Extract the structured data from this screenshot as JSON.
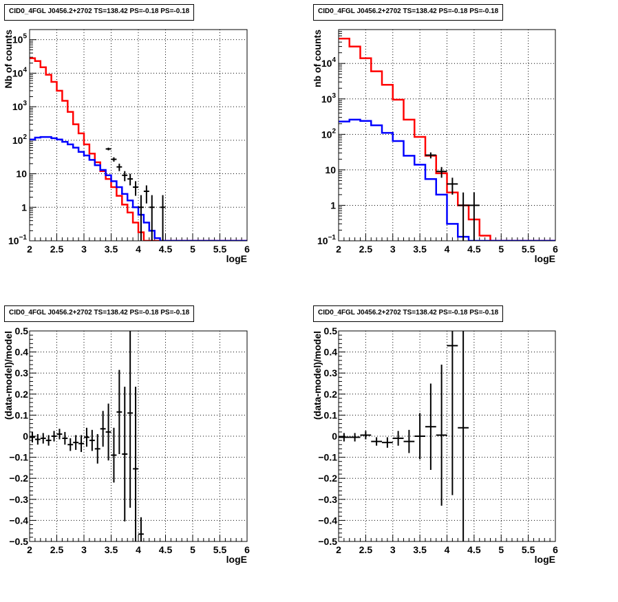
{
  "chart_data": [
    {
      "id": "p1",
      "type": "line",
      "title": "CID0_4FGL J0456.2+2702 TS=138.42 PS=-0.18 PS=-0.18",
      "xlabel": "logE",
      "ylabel": "Nb of counts",
      "xlim": [
        2,
        6
      ],
      "ylim": [
        0.1,
        200000
      ],
      "yscale": "log",
      "grid": true,
      "x_ticks": [
        "2",
        "2.5",
        "3",
        "3.5",
        "4",
        "4.5",
        "5",
        "5.5",
        "6"
      ],
      "y_ticks": [
        {
          "v": 0.1,
          "base": "10",
          "exp": "−1"
        },
        {
          "v": 1,
          "label": "1"
        },
        {
          "v": 10,
          "label": "10"
        },
        {
          "v": 100,
          "base": "10",
          "exp": "2"
        },
        {
          "v": 1000,
          "base": "10",
          "exp": "3"
        },
        {
          "v": 10000,
          "base": "10",
          "exp": "4"
        },
        {
          "v": 100000,
          "base": "10",
          "exp": "5"
        }
      ],
      "bin_edges": [
        2.0,
        2.1,
        2.2,
        2.3,
        2.4,
        2.5,
        2.6,
        2.7,
        2.8,
        2.9,
        3.0,
        3.1,
        3.2,
        3.3,
        3.4,
        3.5,
        3.6,
        3.7,
        3.8,
        3.9,
        4.0,
        4.1,
        4.2,
        4.3,
        4.4,
        4.5,
        4.6,
        4.7,
        4.8,
        4.9,
        5.0,
        5.1,
        5.2,
        5.3,
        5.4,
        5.5,
        5.6,
        5.7,
        5.8,
        5.9,
        6.0
      ],
      "series": [
        {
          "color": "#ff0000",
          "kind": "hist",
          "values": [
            28000,
            23000,
            15000,
            9000,
            5500,
            3000,
            1500,
            700,
            300,
            160,
            75,
            40,
            22,
            12,
            7,
            4,
            2.2,
            1.2,
            0.7,
            0.35,
            0.18,
            0.1,
            0.1,
            0.1,
            0.1,
            0.1,
            0.1,
            0.1,
            0.1,
            0.1,
            0.1,
            0.1,
            0.1,
            0.1,
            0.1,
            0.1,
            0.1,
            0.1,
            0.1,
            0.1
          ]
        },
        {
          "color": "#0000ff",
          "kind": "hist",
          "values": [
            105,
            120,
            125,
            125,
            115,
            105,
            90,
            75,
            60,
            45,
            35,
            26,
            18,
            13,
            9,
            6,
            4,
            2.5,
            1.6,
            1,
            0.6,
            0.35,
            0.2,
            0.12,
            0.1,
            0.1,
            0.1,
            0.1,
            0.1,
            0.1,
            0.1,
            0.1,
            0.1,
            0.1,
            0.1,
            0.1,
            0.1,
            0.1,
            0.1,
            0.1
          ]
        },
        {
          "color": "#000000",
          "kind": "points",
          "points": [
            {
              "x": 3.45,
              "y": 55,
              "xerr": 0.05,
              "ylo": 50,
              "yhi": 60
            },
            {
              "x": 3.55,
              "y": 27,
              "xerr": 0.05,
              "ylo": 23,
              "yhi": 31
            },
            {
              "x": 3.65,
              "y": 16,
              "xerr": 0.05,
              "ylo": 12,
              "yhi": 20
            },
            {
              "x": 3.75,
              "y": 9,
              "xerr": 0.05,
              "ylo": 6,
              "yhi": 12
            },
            {
              "x": 3.85,
              "y": 7,
              "xerr": 0.05,
              "ylo": 4.5,
              "yhi": 10
            },
            {
              "x": 3.95,
              "y": 4,
              "xerr": 0.05,
              "ylo": 2.2,
              "yhi": 6
            },
            {
              "x": 4.05,
              "y": 1,
              "xerr": 0.05,
              "ylo": 0.1,
              "yhi": 2.3
            },
            {
              "x": 4.15,
              "y": 3,
              "xerr": 0.05,
              "ylo": 1.3,
              "yhi": 4.5
            },
            {
              "x": 4.25,
              "y": 1,
              "xerr": 0.05,
              "ylo": 0.1,
              "yhi": 2.3
            },
            {
              "x": 4.45,
              "y": 1,
              "xerr": 0.05,
              "ylo": 0.1,
              "yhi": 2.3
            }
          ]
        }
      ]
    },
    {
      "id": "p2",
      "type": "line",
      "title": "CID0_4FGL J0456.2+2702 TS=138.42 PS=-0.18 PS=-0.18",
      "xlabel": "logE",
      "ylabel": "nb of counts",
      "xlim": [
        2,
        6
      ],
      "ylim": [
        0.1,
        90000
      ],
      "yscale": "log",
      "grid": true,
      "x_ticks": [
        "2",
        "2.5",
        "3",
        "3.5",
        "4",
        "4.5",
        "5",
        "5.5",
        "6"
      ],
      "y_ticks": [
        {
          "v": 0.1,
          "base": "10",
          "exp": "−1"
        },
        {
          "v": 1,
          "label": "1"
        },
        {
          "v": 10,
          "label": "10"
        },
        {
          "v": 100,
          "base": "10",
          "exp": "2"
        },
        {
          "v": 1000,
          "base": "10",
          "exp": "3"
        },
        {
          "v": 10000,
          "base": "10",
          "exp": "4"
        }
      ],
      "bin_edges": [
        2.0,
        2.2,
        2.4,
        2.6,
        2.8,
        3.0,
        3.2,
        3.4,
        3.6,
        3.8,
        4.0,
        4.2,
        4.4,
        4.6,
        4.8,
        5.0,
        5.2,
        5.4,
        5.6,
        5.8,
        6.0
      ],
      "series": [
        {
          "color": "#ff0000",
          "kind": "hist",
          "values": [
            50000,
            30000,
            14000,
            6000,
            2500,
            950,
            260,
            85,
            25,
            8,
            2.3,
            1,
            0.4,
            0.14,
            0.1,
            0.1,
            0.1,
            0.1,
            0.1,
            0.1
          ]
        },
        {
          "color": "#0000ff",
          "kind": "hist",
          "values": [
            230,
            260,
            240,
            180,
            110,
            65,
            25,
            14,
            5.5,
            2,
            0.3,
            0.13,
            0.1,
            0.1,
            0.1,
            0.1,
            0.1,
            0.1,
            0.1,
            0.1
          ]
        },
        {
          "color": "#000000",
          "kind": "points",
          "points": [
            {
              "x": 3.7,
              "y": 26,
              "xerr": 0.1,
              "ylo": 21,
              "yhi": 31
            },
            {
              "x": 3.9,
              "y": 9,
              "xerr": 0.1,
              "ylo": 6,
              "yhi": 12
            },
            {
              "x": 4.1,
              "y": 4,
              "xerr": 0.1,
              "ylo": 2,
              "yhi": 6
            },
            {
              "x": 4.3,
              "y": 1,
              "xerr": 0.1,
              "ylo": 0.1,
              "yhi": 2.3
            },
            {
              "x": 4.5,
              "y": 1,
              "xerr": 0.1,
              "ylo": 0.1,
              "yhi": 2.3
            }
          ]
        }
      ]
    },
    {
      "id": "p3",
      "type": "scatter",
      "title": "CID0_4FGL J0456.2+2702 TS=138.42 PS=-0.18 PS=-0.18",
      "xlabel": "logE",
      "ylabel": "(data-model)/model",
      "xlim": [
        2,
        6
      ],
      "ylim": [
        -0.5,
        0.5
      ],
      "yscale": "linear",
      "grid": true,
      "x_ticks": [
        "2",
        "2.5",
        "3",
        "3.5",
        "4",
        "4.5",
        "5",
        "5.5",
        "6"
      ],
      "y_ticks": [
        "−0.5",
        "−0.4",
        "−0.3",
        "−0.2",
        "−0.1",
        "0",
        "0.1",
        "0.2",
        "0.3",
        "0.4",
        "0.5"
      ],
      "series": [
        {
          "color": "#000000",
          "kind": "points",
          "points": [
            {
              "x": 2.05,
              "y": -0.005,
              "xerr": 0.05,
              "err": 0.025
            },
            {
              "x": 2.15,
              "y": -0.015,
              "xerr": 0.05,
              "err": 0.025
            },
            {
              "x": 2.25,
              "y": -0.01,
              "xerr": 0.05,
              "err": 0.025
            },
            {
              "x": 2.35,
              "y": -0.02,
              "xerr": 0.05,
              "err": 0.025
            },
            {
              "x": 2.45,
              "y": 0.0,
              "xerr": 0.05,
              "err": 0.025
            },
            {
              "x": 2.55,
              "y": 0.01,
              "xerr": 0.05,
              "err": 0.025
            },
            {
              "x": 2.65,
              "y": -0.01,
              "xerr": 0.05,
              "err": 0.03
            },
            {
              "x": 2.75,
              "y": -0.04,
              "xerr": 0.05,
              "err": 0.03
            },
            {
              "x": 2.85,
              "y": -0.03,
              "xerr": 0.05,
              "err": 0.035
            },
            {
              "x": 2.95,
              "y": -0.035,
              "xerr": 0.05,
              "err": 0.04
            },
            {
              "x": 3.05,
              "y": -0.005,
              "xerr": 0.05,
              "err": 0.045
            },
            {
              "x": 3.15,
              "y": -0.02,
              "xerr": 0.05,
              "err": 0.05
            },
            {
              "x": 3.25,
              "y": -0.06,
              "xerr": 0.05,
              "err": 0.07
            },
            {
              "x": 3.35,
              "y": 0.035,
              "xerr": 0.05,
              "err": 0.085
            },
            {
              "x": 3.45,
              "y": 0.02,
              "xerr": 0.05,
              "err": 0.135
            },
            {
              "x": 3.55,
              "y": -0.09,
              "xerr": 0.05,
              "err": 0.13
            },
            {
              "x": 3.65,
              "y": 0.115,
              "xerr": 0.05,
              "err": 0.2
            },
            {
              "x": 3.75,
              "y": -0.085,
              "xerr": 0.05,
              "err": 0.32
            },
            {
              "x": 3.85,
              "y": 0.11,
              "xerr": 0.05,
              "err": 0.45
            },
            {
              "x": 3.95,
              "y": -0.155,
              "xerr": 0.05,
              "err": 0.39
            },
            {
              "x": 4.05,
              "y": -0.465,
              "xerr": 0.05,
              "err": 0.08
            }
          ]
        }
      ]
    },
    {
      "id": "p4",
      "type": "scatter",
      "title": "CID0_4FGL J0456.2+2702 TS=138.42 PS=-0.18 PS=-0.18",
      "xlabel": "logE",
      "ylabel": "(data-model)/model",
      "xlim": [
        2,
        6
      ],
      "ylim": [
        -0.5,
        0.5
      ],
      "yscale": "linear",
      "grid": true,
      "x_ticks": [
        "2",
        "2.5",
        "3",
        "3.5",
        "4",
        "4.5",
        "5",
        "5.5",
        "6"
      ],
      "y_ticks": [
        "−0.5",
        "−0.4",
        "−0.3",
        "−0.2",
        "−0.1",
        "0",
        "0.1",
        "0.2",
        "0.3",
        "0.4",
        "0.5"
      ],
      "series": [
        {
          "color": "#000000",
          "kind": "points",
          "points": [
            {
              "x": 2.1,
              "y": -0.005,
              "xerr": 0.1,
              "err": 0.02
            },
            {
              "x": 2.3,
              "y": -0.005,
              "xerr": 0.1,
              "err": 0.02
            },
            {
              "x": 2.5,
              "y": 0.005,
              "xerr": 0.1,
              "err": 0.02
            },
            {
              "x": 2.7,
              "y": -0.025,
              "xerr": 0.1,
              "err": 0.02
            },
            {
              "x": 2.9,
              "y": -0.03,
              "xerr": 0.1,
              "err": 0.025
            },
            {
              "x": 3.1,
              "y": -0.01,
              "xerr": 0.1,
              "err": 0.035
            },
            {
              "x": 3.3,
              "y": -0.025,
              "xerr": 0.1,
              "err": 0.055
            },
            {
              "x": 3.5,
              "y": 0.0,
              "xerr": 0.1,
              "err": 0.11
            },
            {
              "x": 3.7,
              "y": 0.045,
              "xerr": 0.1,
              "err": 0.205
            },
            {
              "x": 3.9,
              "y": 0.005,
              "xerr": 0.1,
              "err": 0.335
            },
            {
              "x": 4.1,
              "y": 0.43,
              "xerr": 0.1,
              "err": 0.71
            },
            {
              "x": 4.3,
              "y": 0.04,
              "xerr": 0.1,
              "err": 0.9
            }
          ]
        }
      ]
    }
  ]
}
